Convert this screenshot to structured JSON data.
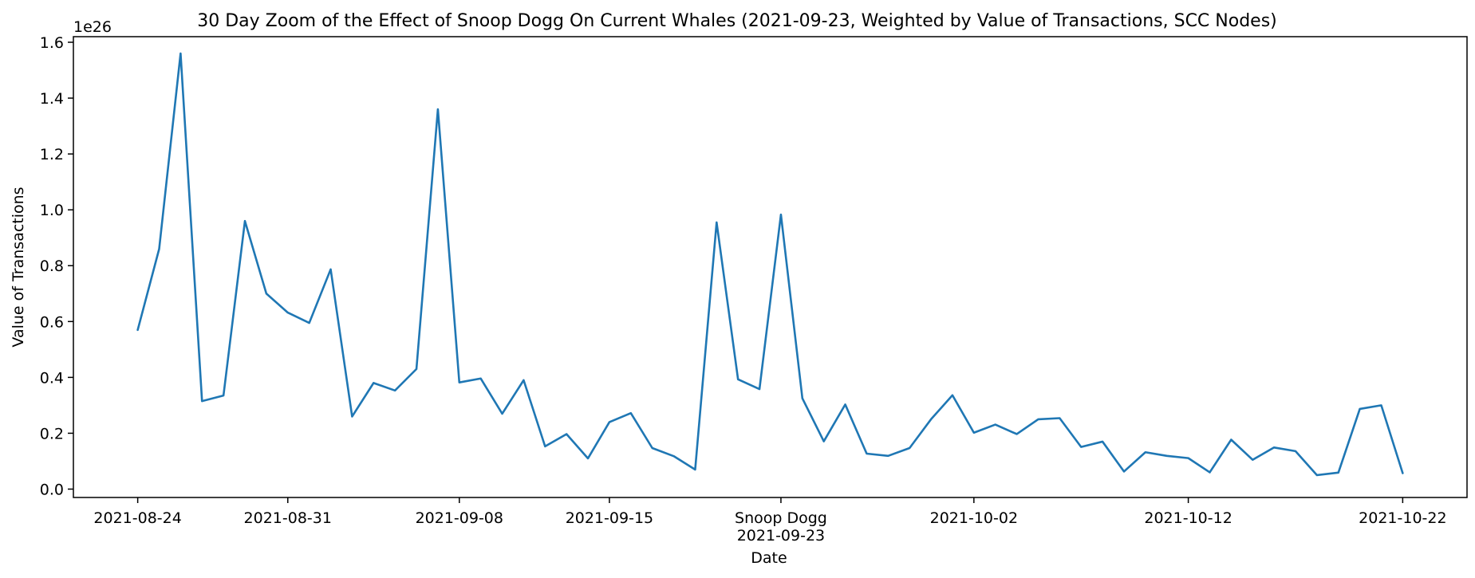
{
  "chart_data": {
    "type": "line",
    "title": "30 Day Zoom of the Effect of Snoop Dogg On Current Whales (2021-09-23, Weighted by Value of Transactions, SCC Nodes)",
    "xlabel": "Date",
    "ylabel": "Value of Transactions",
    "y_offset_label": "1e26",
    "y_scale_exponent": 26,
    "ylim": [
      -0.03,
      1.62
    ],
    "xlim": [
      "2021-08-21",
      "2021-10-25"
    ],
    "x_ticks": [
      {
        "date": "2021-08-24",
        "label": "2021-08-24"
      },
      {
        "date": "2021-08-31",
        "label": "2021-08-31"
      },
      {
        "date": "2021-09-08",
        "label": "2021-09-08"
      },
      {
        "date": "2021-09-15",
        "label": "2021-09-15"
      },
      {
        "date": "2021-09-23",
        "label": "Snoop Dogg",
        "label2": "2021-09-23"
      },
      {
        "date": "2021-10-02",
        "label": "2021-10-02"
      },
      {
        "date": "2021-10-12",
        "label": "2021-10-12"
      },
      {
        "date": "2021-10-22",
        "label": "2021-10-22"
      }
    ],
    "y_ticks": [
      {
        "value": 0.0,
        "label": "0.0"
      },
      {
        "value": 0.2,
        "label": "0.2"
      },
      {
        "value": 0.4,
        "label": "0.4"
      },
      {
        "value": 0.6,
        "label": "0.6"
      },
      {
        "value": 0.8,
        "label": "0.8"
      },
      {
        "value": 1.0,
        "label": "1.0"
      },
      {
        "value": 1.2,
        "label": "1.2"
      },
      {
        "value": 1.4,
        "label": "1.4"
      },
      {
        "value": 1.6,
        "label": "1.6"
      }
    ],
    "grid": false,
    "series": [
      {
        "color": "#1f77b4",
        "x": [
          "2021-08-24",
          "2021-08-25",
          "2021-08-26",
          "2021-08-27",
          "2021-08-28",
          "2021-08-29",
          "2021-08-30",
          "2021-08-31",
          "2021-09-01",
          "2021-09-02",
          "2021-09-03",
          "2021-09-04",
          "2021-09-05",
          "2021-09-06",
          "2021-09-07",
          "2021-09-08",
          "2021-09-09",
          "2021-09-10",
          "2021-09-11",
          "2021-09-12",
          "2021-09-13",
          "2021-09-14",
          "2021-09-15",
          "2021-09-16",
          "2021-09-17",
          "2021-09-18",
          "2021-09-19",
          "2021-09-20",
          "2021-09-21",
          "2021-09-22",
          "2021-09-23",
          "2021-09-24",
          "2021-09-25",
          "2021-09-26",
          "2021-09-27",
          "2021-09-28",
          "2021-09-29",
          "2021-09-30",
          "2021-10-01",
          "2021-10-02",
          "2021-10-03",
          "2021-10-04",
          "2021-10-05",
          "2021-10-06",
          "2021-10-07",
          "2021-10-08",
          "2021-10-09",
          "2021-10-10",
          "2021-10-11",
          "2021-10-12",
          "2021-10-13",
          "2021-10-14",
          "2021-10-15",
          "2021-10-16",
          "2021-10-17",
          "2021-10-18",
          "2021-10-19",
          "2021-10-20",
          "2021-10-21",
          "2021-10-22"
        ],
        "values": [
          0.57,
          0.86,
          1.56,
          0.315,
          0.335,
          0.96,
          0.7,
          0.632,
          0.595,
          0.787,
          0.26,
          0.38,
          0.353,
          0.43,
          1.36,
          0.382,
          0.396,
          0.27,
          0.39,
          0.153,
          0.197,
          0.11,
          0.24,
          0.272,
          0.147,
          0.118,
          0.07,
          0.955,
          0.393,
          0.358,
          0.983,
          0.325,
          0.171,
          0.303,
          0.127,
          0.119,
          0.147,
          0.25,
          0.336,
          0.202,
          0.231,
          0.197,
          0.25,
          0.254,
          0.151,
          0.17,
          0.063,
          0.132,
          0.119,
          0.111,
          0.06,
          0.177,
          0.105,
          0.149,
          0.136,
          0.05,
          0.059,
          0.287,
          0.3,
          0.057
        ]
      }
    ]
  }
}
